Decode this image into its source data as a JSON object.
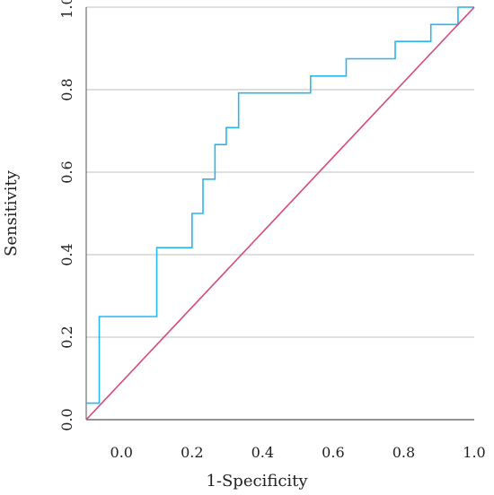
{
  "chart_data": {
    "type": "line",
    "title": "",
    "xlabel": "1-Specificity",
    "ylabel": "Sensitivity",
    "xlim": [
      -0.1,
      1.0
    ],
    "ylim": [
      0.0,
      1.0
    ],
    "xticks": [
      0.0,
      0.2,
      0.4,
      0.6,
      0.8,
      1.0
    ],
    "yticks": [
      0.0,
      0.2,
      0.4,
      0.6,
      0.8,
      1.0
    ],
    "xtick_labels": [
      "0.0",
      "0.2",
      "0.4",
      "0.6",
      "0.8",
      "1.0"
    ],
    "ytick_labels": [
      "0.0",
      "0.2",
      "0.4",
      "0.6",
      "0.8",
      "1.0"
    ],
    "grid": "horizontal",
    "series": [
      {
        "color": "#29b6ec",
        "step": true,
        "points": [
          [
            -0.1,
            0.04
          ],
          [
            -0.063,
            0.04
          ],
          [
            -0.063,
            0.25
          ],
          [
            0.1,
            0.25
          ],
          [
            0.1,
            0.417
          ],
          [
            0.2,
            0.417
          ],
          [
            0.2,
            0.5
          ],
          [
            0.231,
            0.5
          ],
          [
            0.231,
            0.583
          ],
          [
            0.265,
            0.583
          ],
          [
            0.265,
            0.667
          ],
          [
            0.297,
            0.667
          ],
          [
            0.297,
            0.708
          ],
          [
            0.332,
            0.708
          ],
          [
            0.332,
            0.792
          ],
          [
            0.536,
            0.792
          ],
          [
            0.536,
            0.833
          ],
          [
            0.637,
            0.833
          ],
          [
            0.637,
            0.875
          ],
          [
            0.776,
            0.875
          ],
          [
            0.776,
            0.917
          ],
          [
            0.877,
            0.917
          ],
          [
            0.877,
            0.958
          ],
          [
            0.954,
            0.958
          ],
          [
            0.954,
            1.0
          ],
          [
            1.0,
            1.0
          ]
        ]
      },
      {
        "color": "#d6497a",
        "step": false,
        "points": [
          [
            -0.1,
            0.0
          ],
          [
            1.0,
            1.0
          ]
        ]
      }
    ]
  }
}
